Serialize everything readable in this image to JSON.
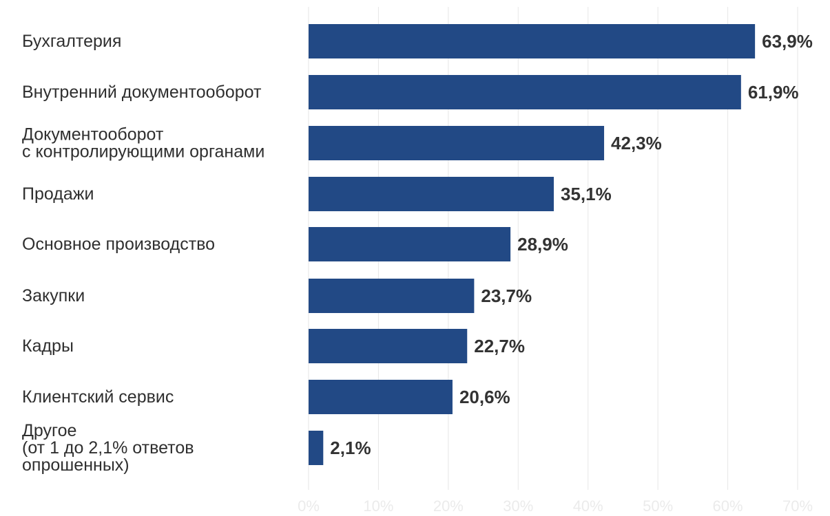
{
  "chart_data": {
    "type": "bar",
    "orientation": "horizontal",
    "title": "",
    "xlabel": "",
    "ylabel": "",
    "xlim": [
      0,
      70
    ],
    "grid": true,
    "legend": "none",
    "bar_color": "#224985",
    "value_label_color": "#333333",
    "category_label_color": "#2f2f2f",
    "tick_label_color": "#ebebeb",
    "categories": [
      [
        "Бухгалтерия"
      ],
      [
        "Внутренний документооборот"
      ],
      [
        "Документооборот",
        "с контролирующими органами"
      ],
      [
        "Продажи"
      ],
      [
        "Основное производство"
      ],
      [
        "Закупки"
      ],
      [
        "Кадры"
      ],
      [
        "Клиентский сервис"
      ],
      [
        "Другое",
        "(от 1 до 2,1% ответов",
        "опрошенных)"
      ]
    ],
    "values": [
      63.9,
      61.9,
      42.3,
      35.1,
      28.9,
      23.7,
      22.7,
      20.6,
      2.1
    ],
    "value_labels": [
      "63,9%",
      "61,9%",
      "42,3%",
      "35,1%",
      "28,9%",
      "23,7%",
      "22,7%",
      "20,6%",
      "2,1%"
    ],
    "x_ticks": [
      0,
      10,
      20,
      30,
      40,
      50,
      60,
      70
    ],
    "x_tick_labels": [
      "0%",
      "10%",
      "20%",
      "30%",
      "40%",
      "50%",
      "60%",
      "70%"
    ]
  }
}
